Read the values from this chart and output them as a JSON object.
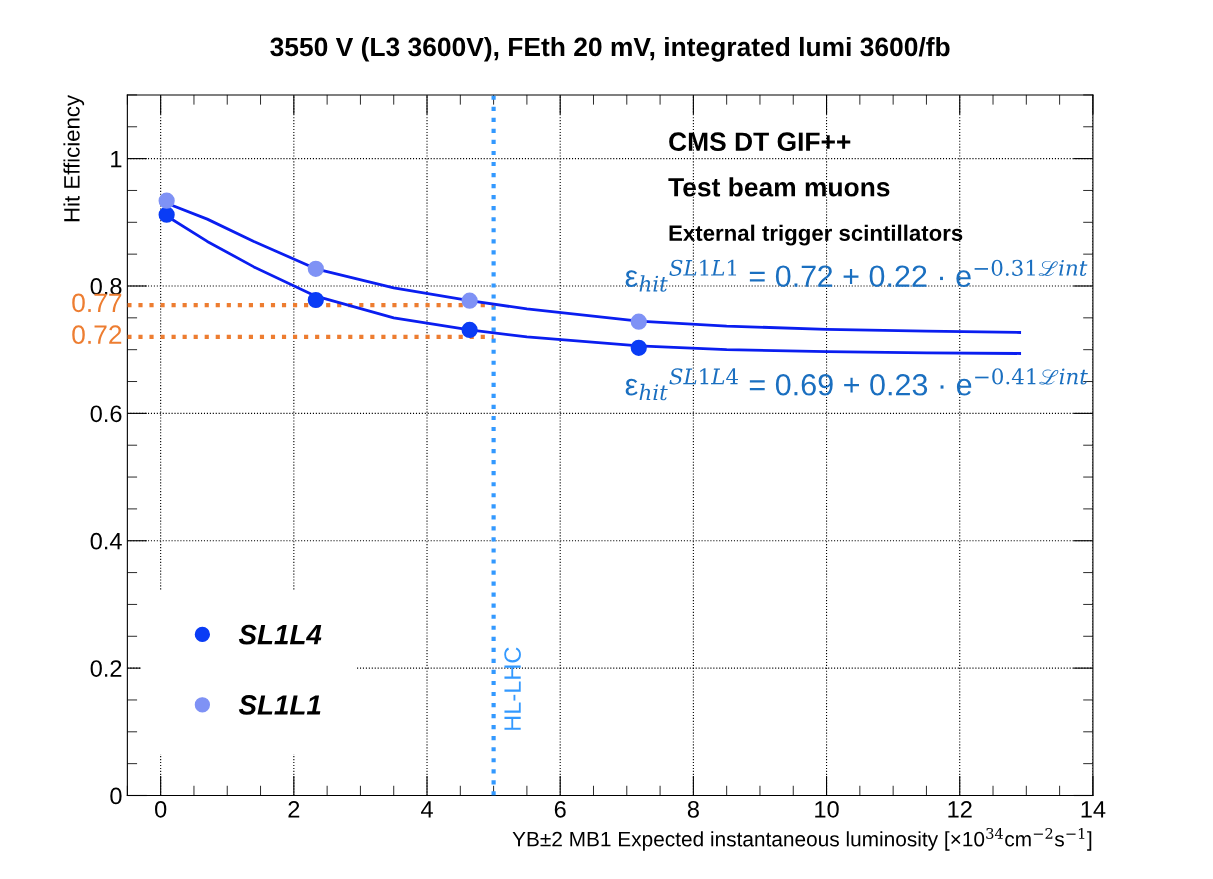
{
  "chart_data": {
    "type": "scatter",
    "title": "3550 V (L3 3600V), FEth 20 mV, integrated lumi 3600/fb",
    "xlabel": "YB±2 MB1 Expected instantaneous luminosity [×10$^{34}$cm$^{−2}$s$^{−1}$]",
    "ylabel": "Hit Efficiency",
    "series": [
      {
        "name": "SL1L4",
        "color": "#0a3cf5",
        "marker": "circle",
        "x": [
          0.09,
          2.33,
          4.64,
          7.18
        ],
        "values": [
          0.912,
          0.778,
          0.731,
          0.703
        ]
      },
      {
        "name": "SL1L1",
        "color": "#7f92f5",
        "marker": "circle",
        "x": [
          0.09,
          2.33,
          4.64,
          7.18
        ],
        "values": [
          0.934,
          0.827,
          0.777,
          0.744
        ]
      },
      {
        "type": "line",
        "color": "#0a1ef0",
        "marker": "none",
        "x": [
          0.09,
          0.7,
          1.4,
          2.33,
          3.5,
          4.64,
          5.5,
          7.18,
          8.5,
          10,
          11.5,
          12.9
        ],
        "values": [
          0.93,
          0.905,
          0.87,
          0.827,
          0.797,
          0.777,
          0.764,
          0.745,
          0.737,
          0.732,
          0.729,
          0.727
        ]
      },
      {
        "type": "line",
        "color": "#0a1ef0",
        "marker": "none",
        "x": [
          0.09,
          0.7,
          1.4,
          2.33,
          3.5,
          4.64,
          5.5,
          7.18,
          8.5,
          10,
          11.5,
          12.9
        ],
        "values": [
          0.91,
          0.87,
          0.83,
          0.784,
          0.75,
          0.731,
          0.72,
          0.706,
          0.7,
          0.697,
          0.695,
          0.694
        ]
      }
    ],
    "xlim": [
      -0.5,
      14
    ],
    "xticks": [
      0,
      2,
      4,
      6,
      8,
      10,
      12,
      14
    ],
    "ylim": [
      0,
      1.1
    ],
    "yticks": [
      0,
      0.2,
      0.4,
      0.6,
      0.8,
      1
    ],
    "grid": true,
    "legend": "bottom left",
    "ref_lines": [
      {
        "axis": "x",
        "value": 5,
        "label": "HL-LHC",
        "color": "#3399ff",
        "line_style": "dotted"
      },
      {
        "axis": "y",
        "value": 0.77,
        "label": "0.77",
        "color": "#ed7d31",
        "line_style": "dotted"
      },
      {
        "axis": "y",
        "value": 0.72,
        "label": "0.72",
        "color": "#ed7d31",
        "line_style": "dotted"
      }
    ],
    "annotations": [
      "CMS DT GIF++",
      "Test beam muons",
      "External trigger scintillators",
      "ε$_{hit}$$^{SL1L1}$ = 0.72 + 0.22 · e$^{−0.31ℒint}$",
      "ε$_{hit}$$^{SL1L4}$ = 0.69 + 0.23 · e$^{−0.41ℒint}$"
    ]
  }
}
